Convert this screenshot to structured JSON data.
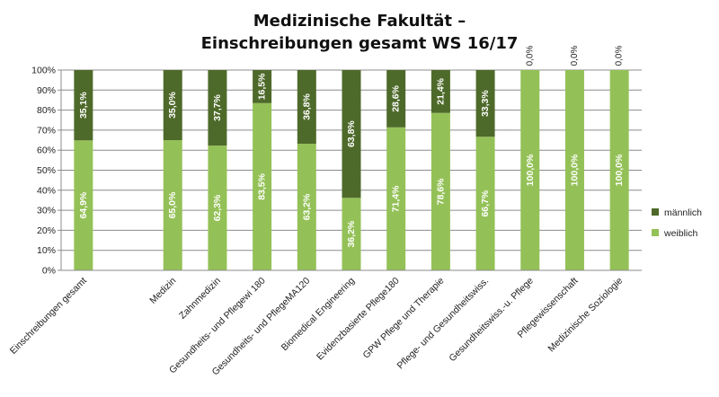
{
  "chart_data": {
    "type": "bar",
    "stacked": true,
    "percent_stacked": true,
    "title_line1": "Medizinische Fakultät –",
    "title_line2": "Einschreibungen gesamt WS 16/17",
    "xlabel": "",
    "ylabel": "",
    "ylim": [
      0,
      100
    ],
    "grid": true,
    "legend_position": "right",
    "y_ticks": [
      "0%",
      "10%",
      "20%",
      "30%",
      "40%",
      "50%",
      "60%",
      "70%",
      "80%",
      "90%",
      "100%"
    ],
    "categories": [
      "Einschreibungen gesamt",
      "",
      "Medizin",
      "Zahnmedizin",
      "Gesundheits- und Pflegewi 180",
      "Gesundheits- und PflegeMA120",
      "Biomedical Engineering",
      "Evidenzbasierte Pflege180",
      "GPW Pflege und Therapie",
      "Pflege- und Gesundheitswiss.",
      "Gesundheitswiss.-u. Pflege",
      "Pflegewissenschaft",
      "Medizinische Soziologie"
    ],
    "series": [
      {
        "name": "weiblich",
        "color": "#94c157",
        "values": [
          64.9,
          null,
          65.0,
          62.3,
          83.5,
          63.2,
          36.2,
          71.4,
          78.6,
          66.7,
          100.0,
          100.0,
          100.0
        ],
        "labels": [
          "64,9%",
          "",
          "65,0%",
          "62,3%",
          "83,5%",
          "63,2%",
          "36,2%",
          "71,4%",
          "78,6%",
          "66,7%",
          "100,0%",
          "100,0%",
          "100,0%"
        ]
      },
      {
        "name": "männlich",
        "color": "#4e6a2a",
        "values": [
          35.1,
          null,
          35.0,
          37.7,
          16.5,
          36.8,
          63.8,
          28.6,
          21.4,
          33.3,
          0.0,
          0.0,
          0.0
        ],
        "labels": [
          "35,1%",
          "",
          "35,0%",
          "37,7%",
          "16,5%",
          "36,8%",
          "63,8%",
          "28,6%",
          "21,4%",
          "33,3%",
          "0,0%",
          "0,0%",
          "0,0%"
        ]
      }
    ],
    "legend": [
      "männlich",
      "weiblich"
    ]
  }
}
